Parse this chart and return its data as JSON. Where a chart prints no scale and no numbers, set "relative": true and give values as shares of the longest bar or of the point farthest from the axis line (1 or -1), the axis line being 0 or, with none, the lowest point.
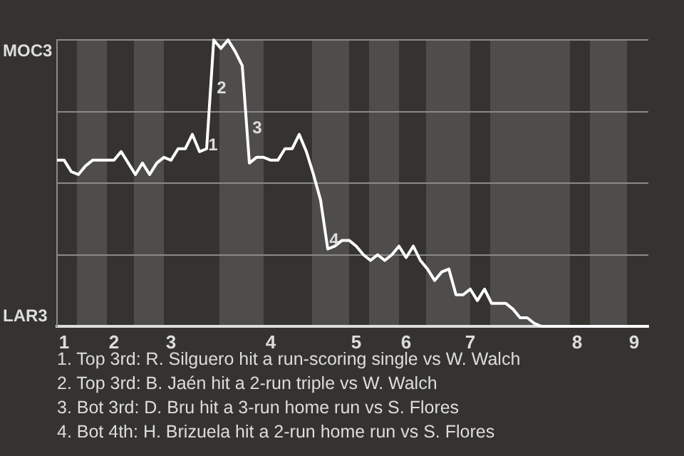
{
  "chart_data": {
    "type": "line",
    "relative": true,
    "categories": [
      null,
      "1",
      null,
      null,
      null,
      null,
      null,
      null,
      "2",
      null,
      null,
      null,
      null,
      null,
      null,
      null,
      "3",
      null,
      null,
      null,
      null,
      null,
      null,
      null,
      null,
      null,
      null,
      null,
      null,
      null,
      "4",
      null,
      null,
      null,
      null,
      null,
      null,
      null,
      null,
      null,
      null,
      null,
      "5",
      null,
      null,
      null,
      null,
      null,
      null,
      "6",
      null,
      null,
      null,
      null,
      null,
      null,
      null,
      null,
      "7",
      null,
      null,
      null,
      null,
      null,
      null,
      null,
      null,
      null,
      null,
      null,
      null,
      null,
      null,
      "8",
      null,
      null,
      null,
      null,
      null,
      null,
      null,
      "9",
      null,
      null
    ],
    "values": [
      0.58,
      0.58,
      0.54,
      0.53,
      0.56,
      0.58,
      0.58,
      0.58,
      0.58,
      0.61,
      0.57,
      0.53,
      0.57,
      0.53,
      0.57,
      0.59,
      0.58,
      0.62,
      0.62,
      0.67,
      0.61,
      0.62,
      1,
      0.97,
      1,
      0.96,
      0.91,
      0.57,
      0.59,
      0.59,
      0.58,
      0.58,
      0.62,
      0.62,
      0.67,
      0.61,
      0.53,
      0.44,
      0.27,
      0.28,
      0.3,
      0.3,
      0.28,
      0.25,
      0.23,
      0.25,
      0.23,
      0.25,
      0.28,
      0.24,
      0.28,
      0.23,
      0.2,
      0.16,
      0.19,
      0.2,
      0.11,
      0.11,
      0.13,
      0.09,
      0.13,
      0.08,
      0.08,
      0.08,
      0.06,
      0.03,
      0.03,
      0.01,
      0,
      0,
      0,
      0,
      0,
      0,
      0,
      0,
      0,
      0,
      0,
      0,
      0,
      0,
      0,
      0
    ],
    "color": "#ffffff",
    "grid": "y",
    "legend": false,
    "annotations": [
      "MOC3",
      "LAR3",
      {
        "text": "1",
        "y": 0.63
      },
      "2",
      "3",
      {
        "text": "4",
        "y": 0.3
      },
      "1. Top 3rd: R. Silguero hit a run-scoring single vs W. Walch",
      "2. Top 3rd: B. Jaén hit a 2-run triple vs W. Walch",
      "3. Bot 3rd: D. Bru hit a 3-run home run vs S. Flores",
      "4. Bot 4th: H. Brizuela hit a 2-run home run vs S. Flores"
    ]
  }
}
